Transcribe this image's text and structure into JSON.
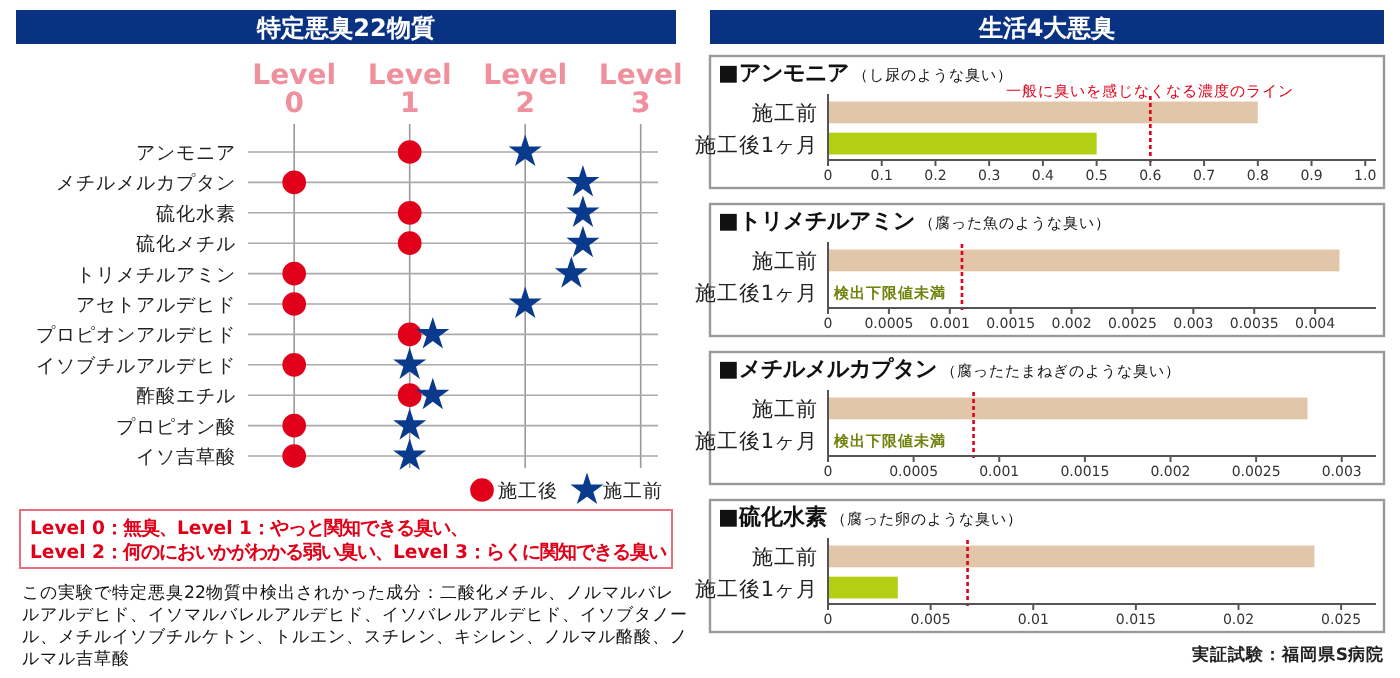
{
  "chart_data": [
    {
      "type": "scatter",
      "title": "特定悪臭22物質",
      "orientation": "horizontal",
      "categories": [
        "アンモニア",
        "メチルメルカプタン",
        "硫化水素",
        "硫化メチル",
        "トリメチルアミン",
        "アセトアルデヒド",
        "プロピオンアルデヒド",
        "イソブチルアルデヒド",
        "酢酸エチル",
        "プロピオン酸",
        "イソ吉草酸"
      ],
      "xlim": [
        -0.4,
        3.15
      ],
      "xticks": [
        0,
        1,
        2,
        3
      ],
      "xlabel": "Level",
      "grid": true,
      "legend": "bottom right",
      "series": [
        {
          "name": "施工後",
          "color": "#e0001a",
          "marker": "circle",
          "values": [
            1,
            0,
            1,
            1,
            0,
            0,
            1,
            0,
            1,
            0,
            0
          ]
        },
        {
          "name": "施工前",
          "color": "#0a3a8c",
          "marker": "star",
          "values": [
            2,
            2.5,
            2.5,
            2.5,
            2.4,
            2,
            1.2,
            1,
            1.2,
            1,
            1
          ]
        }
      ],
      "annotations": [
        "Level 0：無臭、Level 1：やっと関知できる臭い、",
        "Level 2：何のにおいかがわかる弱い臭い、Level 3：らくに関知できる臭い",
        "この実験で特定悪臭22物質中検出されかった成分：二酸化メチル、ノルマルバレルアルデヒド、イソマルバレルアルデヒド、イソバレルアルデヒド、イソブタノール、メチルイソブチルケトン、トルエン、スチレン、キシレン、ノルマル酪酸、ノルマル吉草酸"
      ]
    },
    {
      "type": "other",
      "title": "生活4大悪臭"
    },
    {
      "type": "bar",
      "orientation": "horizontal",
      "title": "■アンモニア",
      "subtitle": "（し尿のような臭い）",
      "categories": [
        "施工前",
        "施工後1ヶ月"
      ],
      "values": [
        0.8,
        0.5
      ],
      "colors": [
        "#e2c6a9",
        "#b3cf14"
      ],
      "xlim": [
        0,
        1.02
      ],
      "xticks": [
        0,
        0.1,
        0.2,
        0.3,
        0.4,
        0.5,
        0.6,
        0.7,
        0.8,
        0.9,
        {
          "value": 1,
          "label": "1.0"
        }
      ],
      "ref_lines": [
        {
          "axis": "x",
          "value": 0.6,
          "label": "一般に臭いを感じなくなる濃度のライン",
          "color": "#e0001a",
          "line_style": "dotted"
        }
      ]
    },
    {
      "type": "bar",
      "orientation": "horizontal",
      "title": "■トリメチルアミン",
      "subtitle": "（腐った魚のような臭い）",
      "categories": [
        "施工前",
        "施工後1ヶ月"
      ],
      "values": [
        0.0042,
        null
      ],
      "colors": [
        "#e2c6a9",
        "#b3cf14"
      ],
      "value_labels": [
        null,
        "検出下限値未満"
      ],
      "xlim": [
        0,
        0.0045
      ],
      "xticks": [
        0,
        0.0005,
        0.001,
        0.0015,
        0.002,
        0.0025,
        0.003,
        0.0035,
        0.004
      ],
      "ref_lines": [
        {
          "axis": "x",
          "value": 0.0011,
          "color": "#e0001a",
          "line_style": "dotted"
        }
      ]
    },
    {
      "type": "bar",
      "orientation": "horizontal",
      "title": "■メチルメルカプタン",
      "subtitle": "（腐ったたまねぎのような臭い）",
      "categories": [
        "施工前",
        "施工後1ヶ月"
      ],
      "values": [
        0.0028,
        null
      ],
      "colors": [
        "#e2c6a9",
        "#b3cf14"
      ],
      "value_labels": [
        null,
        "検出下限値未満"
      ],
      "xlim": [
        0,
        0.0032
      ],
      "xticks": [
        0,
        0.0005,
        0.001,
        0.0015,
        0.002,
        0.0025,
        0.003
      ],
      "ref_lines": [
        {
          "axis": "x",
          "value": 0.00085,
          "color": "#e0001a",
          "line_style": "dotted"
        }
      ]
    },
    {
      "type": "bar",
      "orientation": "horizontal",
      "title": "■硫化水素",
      "subtitle": "（腐った卵のような臭い）",
      "categories": [
        "施工前",
        "施工後1ヶ月"
      ],
      "values": [
        0.0237,
        0.0034
      ],
      "colors": [
        "#e2c6a9",
        "#b3cf14"
      ],
      "xlim": [
        0,
        0.0267
      ],
      "xticks": [
        0,
        0.005,
        0.01,
        0.015,
        0.02,
        0.025
      ],
      "ref_lines": [
        {
          "axis": "x",
          "value": 0.0068,
          "color": "#e0001a",
          "line_style": "dotted"
        }
      ],
      "annotations": [
        "実証試験：福岡県S病院"
      ]
    }
  ]
}
